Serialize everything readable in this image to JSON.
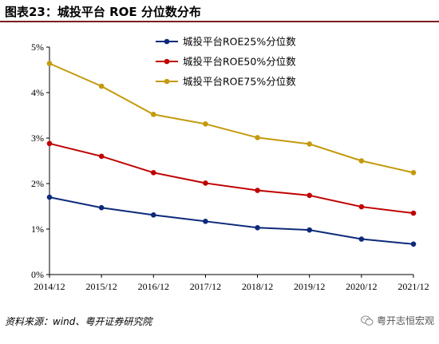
{
  "header": {
    "title": "图表23：城投平台 ROE 分位数分布"
  },
  "footer": {
    "source": "资料来源：wind、粤开证券研究院",
    "watermark": "粤开志恒宏观",
    "watermark_icon": "wechat-icon"
  },
  "chart_data": {
    "type": "line",
    "categories": [
      "2014/12",
      "2015/12",
      "2016/12",
      "2017/12",
      "2018/12",
      "2019/12",
      "2020/12",
      "2021/12"
    ],
    "series": [
      {
        "name": "城投平台ROE25%分位数",
        "color": "#0d2a7a",
        "values": [
          1.7,
          1.47,
          1.31,
          1.17,
          1.03,
          0.98,
          0.78,
          0.67
        ]
      },
      {
        "name": "城投平台ROE50%分位数",
        "color": "#c00000",
        "values": [
          2.88,
          2.6,
          2.24,
          2.01,
          1.85,
          1.74,
          1.49,
          1.35
        ]
      },
      {
        "name": "城投平台ROE75%分位数",
        "color": "#c49a0c",
        "values": [
          4.64,
          4.14,
          3.52,
          3.31,
          3.01,
          2.87,
          2.5,
          2.24
        ]
      }
    ],
    "y_ticks": [
      "0%",
      "1%",
      "2%",
      "3%",
      "4%",
      "5%"
    ],
    "ylim": [
      0,
      5
    ],
    "grid": false,
    "legend": "top-center"
  }
}
